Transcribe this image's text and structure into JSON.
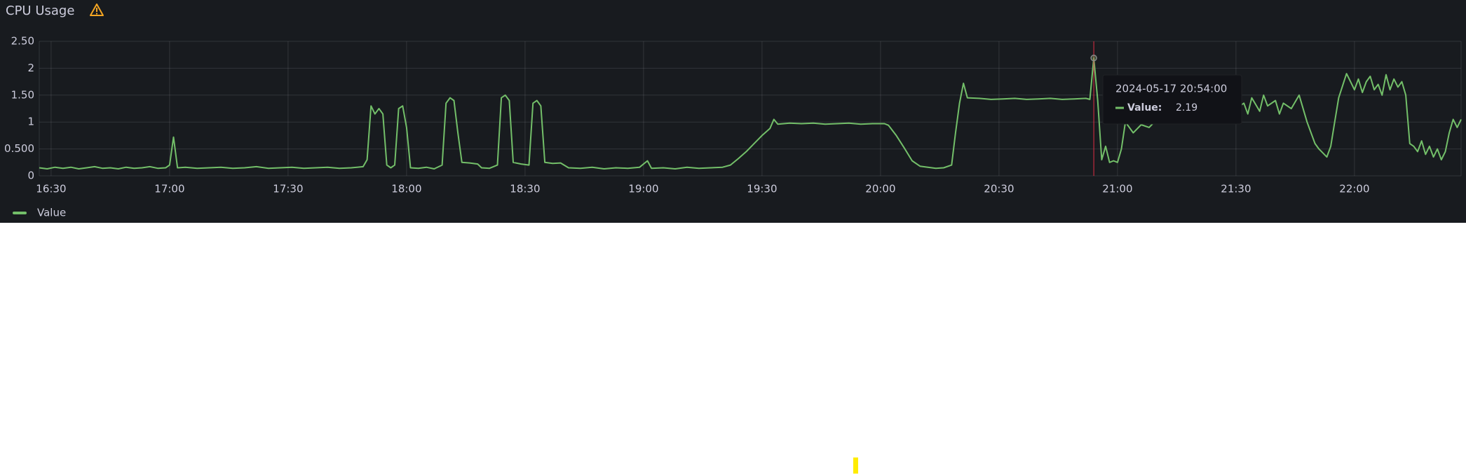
{
  "chart_data": {
    "type": "line",
    "title": "CPU Usage",
    "x": [
      "16:27",
      "16:29",
      "16:31",
      "16:33",
      "16:35",
      "16:37",
      "16:39",
      "16:41",
      "16:43",
      "16:45",
      "16:47",
      "16:49",
      "16:51",
      "16:53",
      "16:55",
      "16:57",
      "16:59",
      "17:00",
      "17:01",
      "17:02",
      "17:04",
      "17:07",
      "17:10",
      "17:13",
      "17:16",
      "17:19",
      "17:22",
      "17:25",
      "17:28",
      "17:31",
      "17:34",
      "17:37",
      "17:40",
      "17:43",
      "17:46",
      "17:49",
      "17:50",
      "17:51",
      "17:52",
      "17:53",
      "17:54",
      "17:55",
      "17:56",
      "17:57",
      "17:58",
      "17:59",
      "18:00",
      "18:01",
      "18:03",
      "18:05",
      "18:07",
      "18:09",
      "18:10",
      "18:11",
      "18:12",
      "18:13",
      "18:14",
      "18:16",
      "18:18",
      "18:19",
      "18:21",
      "18:23",
      "18:24",
      "18:25",
      "18:26",
      "18:27",
      "18:29",
      "18:31",
      "18:32",
      "18:33",
      "18:34",
      "18:35",
      "18:37",
      "18:39",
      "18:41",
      "18:44",
      "18:47",
      "18:50",
      "18:53",
      "18:56",
      "18:59",
      "19:01",
      "19:02",
      "19:05",
      "19:08",
      "19:11",
      "19:14",
      "19:17",
      "19:20",
      "19:22",
      "19:24",
      "19:26",
      "19:28",
      "19:30",
      "19:32",
      "19:33",
      "19:34",
      "19:37",
      "19:40",
      "19:43",
      "19:46",
      "19:49",
      "19:52",
      "19:55",
      "19:58",
      "20:01",
      "20:02",
      "20:04",
      "20:06",
      "20:08",
      "20:10",
      "20:12",
      "20:14",
      "20:16",
      "20:18",
      "20:19",
      "20:20",
      "20:21",
      "20:22",
      "20:25",
      "20:28",
      "20:31",
      "20:34",
      "20:37",
      "20:40",
      "20:43",
      "20:46",
      "20:49",
      "20:52",
      "20:53",
      "20:54",
      "20:55",
      "20:56",
      "20:57",
      "20:58",
      "20:59",
      "21:00",
      "21:01",
      "21:02",
      "21:04",
      "21:06",
      "21:08",
      "21:10",
      "21:12",
      "21:14",
      "21:16",
      "21:18",
      "21:20",
      "21:22",
      "21:24",
      "21:26",
      "21:28",
      "21:30",
      "21:32",
      "21:33",
      "21:34",
      "21:36",
      "21:37",
      "21:38",
      "21:40",
      "21:41",
      "21:42",
      "21:44",
      "21:46",
      "21:48",
      "21:50",
      "21:51",
      "21:53",
      "21:54",
      "21:55",
      "21:56",
      "21:58",
      "21:59",
      "22:00",
      "22:01",
      "22:02",
      "22:03",
      "22:04",
      "22:05",
      "22:06",
      "22:07",
      "22:08",
      "22:09",
      "22:10",
      "22:11",
      "22:12",
      "22:13",
      "22:14",
      "22:15",
      "22:16",
      "22:17",
      "22:18",
      "22:19",
      "22:20",
      "22:21",
      "22:22",
      "22:23",
      "22:24",
      "22:25",
      "22:26",
      "22:27"
    ],
    "series": [
      {
        "name": "Value",
        "color": "#73bf69",
        "values": [
          0.15,
          0.13,
          0.16,
          0.14,
          0.16,
          0.13,
          0.15,
          0.17,
          0.14,
          0.15,
          0.13,
          0.16,
          0.14,
          0.15,
          0.17,
          0.14,
          0.15,
          0.2,
          0.72,
          0.15,
          0.16,
          0.14,
          0.15,
          0.16,
          0.14,
          0.15,
          0.17,
          0.14,
          0.15,
          0.16,
          0.14,
          0.15,
          0.16,
          0.14,
          0.15,
          0.17,
          0.3,
          1.3,
          1.15,
          1.25,
          1.15,
          0.2,
          0.15,
          0.2,
          1.25,
          1.3,
          0.9,
          0.15,
          0.14,
          0.16,
          0.13,
          0.2,
          1.35,
          1.45,
          1.4,
          0.8,
          0.25,
          0.24,
          0.22,
          0.15,
          0.14,
          0.2,
          1.45,
          1.5,
          1.4,
          0.25,
          0.22,
          0.2,
          1.35,
          1.4,
          1.3,
          0.25,
          0.23,
          0.24,
          0.15,
          0.14,
          0.16,
          0.13,
          0.15,
          0.14,
          0.16,
          0.28,
          0.14,
          0.15,
          0.13,
          0.16,
          0.14,
          0.15,
          0.16,
          0.2,
          0.32,
          0.45,
          0.6,
          0.75,
          0.88,
          1.05,
          0.96,
          0.98,
          0.97,
          0.98,
          0.96,
          0.97,
          0.98,
          0.96,
          0.97,
          0.97,
          0.94,
          0.75,
          0.52,
          0.28,
          0.18,
          0.16,
          0.14,
          0.15,
          0.2,
          0.8,
          1.35,
          1.72,
          1.45,
          1.44,
          1.42,
          1.43,
          1.44,
          1.42,
          1.43,
          1.44,
          1.42,
          1.43,
          1.44,
          1.42,
          2.19,
          1.4,
          0.3,
          0.55,
          0.25,
          0.28,
          0.25,
          0.5,
          1.0,
          0.8,
          0.95,
          0.9,
          1.05,
          1.15,
          1.3,
          1.2,
          1.4,
          1.25,
          1.35,
          1.5,
          1.3,
          1.45,
          1.25,
          1.35,
          1.15,
          1.45,
          1.2,
          1.5,
          1.3,
          1.4,
          1.15,
          1.35,
          1.25,
          1.5,
          1.0,
          0.6,
          0.5,
          0.35,
          0.55,
          1.0,
          1.45,
          1.9,
          1.75,
          1.6,
          1.8,
          1.55,
          1.75,
          1.85,
          1.6,
          1.7,
          1.5,
          1.88,
          1.6,
          1.8,
          1.65,
          1.75,
          1.5,
          0.6,
          0.55,
          0.45,
          0.65,
          0.4,
          0.55,
          0.35,
          0.5,
          0.3,
          0.45,
          0.8,
          1.05,
          0.9,
          1.05
        ]
      }
    ],
    "xlim": [
      "16:27",
      "22:27"
    ],
    "xticks": [
      "16:30",
      "17:00",
      "17:30",
      "18:00",
      "18:30",
      "19:00",
      "19:30",
      "20:00",
      "20:30",
      "21:00",
      "21:30",
      "22:00"
    ],
    "ylim": [
      0,
      2.5
    ],
    "yticks": [
      0,
      {
        "value": 0.5,
        "label": "0.500"
      },
      1,
      {
        "value": 1.5,
        "label": "1.50"
      },
      2,
      {
        "value": 2.5,
        "label": "2.50"
      }
    ],
    "grid": true,
    "legend": "bottom-left",
    "tooltip": {
      "title": "2024-05-17 20:54:00",
      "label": "Value:"
    }
  }
}
